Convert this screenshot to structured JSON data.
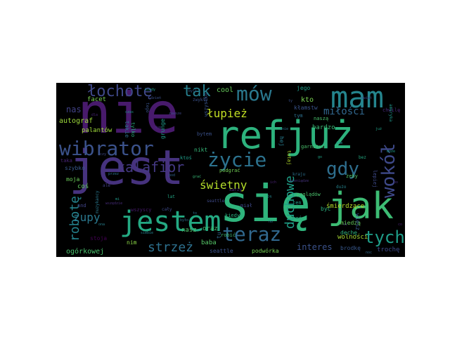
{
  "words": [
    {
      "text": "nie",
      "color": "#481a6c"
    },
    {
      "text": "jest",
      "color": "#46327e"
    },
    {
      "text": "refjuż",
      "color": "#2db27d"
    },
    {
      "text": "się",
      "color": "#2fb47c"
    },
    {
      "text": "jak",
      "color": "#3dbc74"
    },
    {
      "text": "jestem",
      "color": "#24aa83"
    },
    {
      "text": "mam",
      "color": "#25858e"
    },
    {
      "text": "wibrator",
      "color": "#3b528b"
    },
    {
      "text": "życie",
      "color": "#2c728e"
    },
    {
      "text": "teraz",
      "color": "#31688e"
    },
    {
      "text": "mów",
      "color": "#2a788e"
    },
    {
      "text": "gdy",
      "color": "#2e6e8e"
    },
    {
      "text": "tych",
      "color": "#1f9e89"
    },
    {
      "text": "wokół",
      "color": "#3e4989"
    },
    {
      "text": "łochotę",
      "color": "#3f4889"
    },
    {
      "text": "tak",
      "color": "#277f8e"
    },
    {
      "text": "kalafior",
      "color": "#443983"
    },
    {
      "text": "zupy",
      "color": "#2a788e"
    },
    {
      "text": "robotę",
      "color": "#25838e"
    },
    {
      "text": "strzeż",
      "color": "#2d708e"
    },
    {
      "text": "świetny",
      "color": "#b5de2b"
    },
    {
      "text": "łupież",
      "color": "#c2df23"
    },
    {
      "text": "miłości",
      "color": "#31678e"
    },
    {
      "text": "interes",
      "color": "#3b528b"
    },
    {
      "text": "duchowe",
      "color": "#1fa088"
    },
    {
      "text": "nas",
      "color": "#414287"
    },
    {
      "text": "autograf",
      "color": "#9dd93b"
    },
    {
      "text": "palantów",
      "color": "#9fda3a"
    },
    {
      "text": "ogórkowej",
      "color": "#4ac16d"
    },
    {
      "text": "cool",
      "color": "#67cc5c"
    },
    {
      "text": "kto",
      "color": "#7ad151"
    },
    {
      "text": "facet",
      "color": "#7ad151"
    },
    {
      "text": "bardzo",
      "color": "#3aba76"
    },
    {
      "text": "wolności",
      "color": "#a8db34"
    },
    {
      "text": "śmierdzące",
      "color": "#b8de29"
    },
    {
      "text": "nasz",
      "color": "#4ec36b"
    },
    {
      "text": "oraz",
      "color": "#44bf70"
    },
    {
      "text": "baba",
      "color": "#56c667"
    },
    {
      "text": "seattle",
      "color": "#3b528b"
    },
    {
      "text": "podwórka",
      "color": "#75d054"
    },
    {
      "text": "brodkę",
      "color": "#38588c"
    },
    {
      "text": "trochę",
      "color": "#3e4a89"
    },
    {
      "text": "nim",
      "color": "#8bd646"
    },
    {
      "text": "stoja",
      "color": "#440154"
    },
    {
      "text": "moja",
      "color": "#6ccd5a"
    },
    {
      "text": "szybko",
      "color": "#38588c"
    },
    {
      "text": "taka",
      "color": "#482475"
    },
    {
      "text": "coś",
      "color": "#62cb5f"
    },
    {
      "text": "and",
      "color": "#414487"
    },
    {
      "text": "tylko",
      "color": "#29af7f"
    },
    {
      "text": "takie",
      "color": "#2d708e"
    },
    {
      "text": "grunge",
      "color": "#1f9a8a"
    },
    {
      "text": "miedzą",
      "color": "#67cc5c"
    },
    {
      "text": "bytem",
      "color": "#3b528b"
    },
    {
      "text": "wszystko",
      "color": "#39558c"
    },
    {
      "text": "kłamstw",
      "color": "#3a548c"
    },
    {
      "text": "nikt",
      "color": "#35b779"
    },
    {
      "text": "ktoś",
      "color": "#1f9e89"
    },
    {
      "text": "podgrać",
      "color": "#73d056"
    },
    {
      "text": "karzy",
      "color": "#482576"
    },
    {
      "text": "miał",
      "color": "#3e4989"
    },
    {
      "text": "kiedyś",
      "color": "#29af7f"
    },
    {
      "text": "robić",
      "color": "#3fbc73"
    },
    {
      "text": "wszyscy",
      "color": "#481a6c"
    },
    {
      "text": "poglądów",
      "color": "#4ac16d"
    },
    {
      "text": "ten",
      "color": "#1f9e89"
    },
    {
      "text": "choć",
      "color": "#26ad81"
    },
    {
      "text": "hej",
      "color": "#287c8e"
    },
    {
      "text": "być",
      "color": "#2ab07f"
    },
    {
      "text": "dechę",
      "color": "#2db27d"
    },
    {
      "text": "wiesz",
      "color": "#38598c"
    },
    {
      "text": "tutaj",
      "color": "#b5de2b"
    },
    {
      "text": "garnitur",
      "color": "#4ac16d"
    },
    {
      "text": "naszą",
      "color": "#4ac16d"
    },
    {
      "text": "żeby",
      "color": "#52c569"
    },
    {
      "text": "lepiej",
      "color": "#3e4989"
    },
    {
      "text": "tym",
      "color": "#2d708e"
    },
    {
      "text": "jego",
      "color": "#1f9e89"
    },
    {
      "text": "chwilę",
      "color": "#482878"
    },
    {
      "text": "ameryka",
      "color": "#1f968b"
    },
    {
      "text": "dużo",
      "color": "#25848e"
    },
    {
      "text": "zwykły",
      "color": "#3b528b"
    },
    {
      "text": "seattle",
      "color": "#3e4a89"
    },
    {
      "text": "kraju",
      "color": "#2c728e"
    },
    {
      "text": "ale",
      "color": "#433e85"
    },
    {
      "text": "lat",
      "color": "#22a785"
    },
    {
      "text": "byli",
      "color": "#365c8d"
    },
    {
      "text": "wszędzie",
      "color": "#472c7a"
    },
    {
      "text": "cały",
      "color": "#3e4989"
    },
    {
      "text": "bez",
      "color": "#24aa83"
    },
    {
      "text": "siebie",
      "color": "#26818e"
    },
    {
      "text": "muzykancy",
      "color": "#2a788e"
    },
    {
      "text": "może",
      "color": "#1e9b8a"
    },
    {
      "text": "tego",
      "color": "#3a548c"
    },
    {
      "text": "ich",
      "color": "#482173"
    },
    {
      "text": "już",
      "color": "#1fa287"
    },
    {
      "text": "było",
      "color": "#2e6f8e"
    },
    {
      "text": "tam",
      "color": "#21918c"
    },
    {
      "text": "dla",
      "color": "#482475"
    },
    {
      "text": "pod",
      "color": "#33638d"
    },
    {
      "text": "czas",
      "color": "#1f958b"
    },
    {
      "text": "dzień",
      "color": "#3c4f8a"
    },
    {
      "text": "mnie",
      "color": "#2d718e"
    },
    {
      "text": "ona",
      "color": "#27808e"
    },
    {
      "text": "ci",
      "color": "#46307e"
    },
    {
      "text": "przez",
      "color": "#2a768e"
    },
    {
      "text": "kiedy",
      "color": "#1f9f88"
    },
    {
      "text": "grać",
      "color": "#38b977"
    },
    {
      "text": "pieniądze",
      "color": "#46337f"
    },
    {
      "text": "zawsze",
      "color": "#3f4889"
    },
    {
      "text": "świat",
      "color": "#404588"
    },
    {
      "text": "noc",
      "color": "#31688e"
    },
    {
      "text": "dom",
      "color": "#472d7b"
    },
    {
      "text": "ją",
      "color": "#25858e"
    },
    {
      "text": "mi",
      "color": "#1f9a8a"
    },
    {
      "text": "ty",
      "color": "#3b528b"
    },
    {
      "text": "bo",
      "color": "#46327e"
    },
    {
      "text": "to",
      "color": "#2c738e"
    },
    {
      "text": "go",
      "color": "#20a386"
    },
    {
      "text": "czy",
      "color": "#3e4a89"
    },
    {
      "text": "tu",
      "color": "#31688e"
    },
    {
      "text": "no",
      "color": "#2a788e"
    },
    {
      "text": "co",
      "color": "#482071"
    },
    {
      "text": "po",
      "color": "#1f968b"
    }
  ]
}
